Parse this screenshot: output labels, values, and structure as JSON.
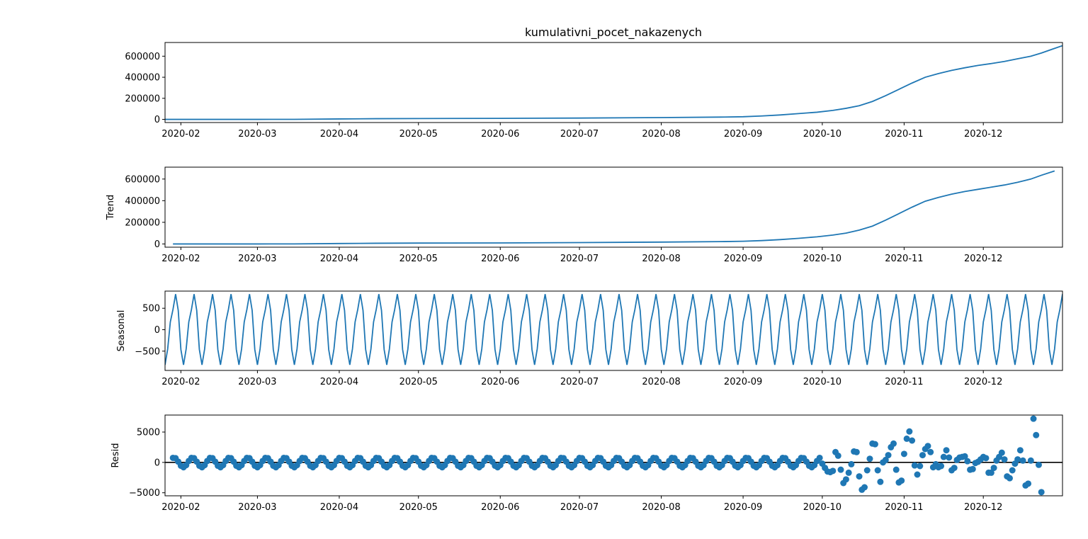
{
  "chart_data": {
    "type": "line",
    "title": "kumulativni_pocet_nakazenych",
    "series_color": "#1f77b4",
    "zero_line_color": "#000000",
    "x_tick_labels": [
      "2020-02",
      "2020-03",
      "2020-04",
      "2020-05",
      "2020-06",
      "2020-07",
      "2020-08",
      "2020-09",
      "2020-10",
      "2020-11",
      "2020-12"
    ],
    "x_tick_dates": [
      "2020-02-01",
      "2020-03-01",
      "2020-04-01",
      "2020-05-01",
      "2020-06-01",
      "2020-07-01",
      "2020-08-01",
      "2020-09-01",
      "2020-10-01",
      "2020-11-01",
      "2020-12-01"
    ],
    "x_range": [
      "2020-01-26",
      "2020-12-31"
    ],
    "panels": [
      {
        "name": "observed",
        "ylabel": "",
        "kind": "line",
        "ylim": [
          -30000,
          730000
        ],
        "y_ticks": [
          0,
          200000,
          400000,
          600000
        ],
        "y_tick_labels": [
          "0",
          "200000",
          "400000",
          "600000"
        ],
        "series_start": "2020-01-26",
        "series_end": "2020-12-31",
        "points": [
          [
            "2020-01-26",
            0
          ],
          [
            "2020-03-01",
            0
          ],
          [
            "2020-03-15",
            500
          ],
          [
            "2020-04-01",
            4000
          ],
          [
            "2020-04-15",
            6500
          ],
          [
            "2020-05-01",
            8000
          ],
          [
            "2020-06-01",
            9500
          ],
          [
            "2020-07-01",
            12500
          ],
          [
            "2020-08-01",
            17000
          ],
          [
            "2020-08-25",
            22000
          ],
          [
            "2020-09-01",
            25000
          ],
          [
            "2020-09-08",
            32000
          ],
          [
            "2020-09-15",
            42000
          ],
          [
            "2020-09-22",
            55000
          ],
          [
            "2020-09-29",
            68000
          ],
          [
            "2020-10-05",
            85000
          ],
          [
            "2020-10-10",
            105000
          ],
          [
            "2020-10-15",
            130000
          ],
          [
            "2020-10-20",
            170000
          ],
          [
            "2020-10-25",
            225000
          ],
          [
            "2020-10-30",
            285000
          ],
          [
            "2020-11-04",
            345000
          ],
          [
            "2020-11-09",
            400000
          ],
          [
            "2020-11-14",
            435000
          ],
          [
            "2020-11-19",
            465000
          ],
          [
            "2020-11-24",
            490000
          ],
          [
            "2020-11-29",
            512000
          ],
          [
            "2020-12-04",
            530000
          ],
          [
            "2020-12-09",
            550000
          ],
          [
            "2020-12-14",
            575000
          ],
          [
            "2020-12-19",
            600000
          ],
          [
            "2020-12-23",
            630000
          ],
          [
            "2020-12-27",
            665000
          ],
          [
            "2020-12-31",
            700000
          ]
        ]
      },
      {
        "name": "trend",
        "ylabel": "Trend",
        "kind": "line",
        "ylim": [
          -30000,
          710000
        ],
        "y_ticks": [
          0,
          200000,
          400000,
          600000
        ],
        "y_tick_labels": [
          "0",
          "200000",
          "400000",
          "600000"
        ],
        "points": [
          [
            "2020-01-29",
            0
          ],
          [
            "2020-03-01",
            0
          ],
          [
            "2020-03-15",
            500
          ],
          [
            "2020-04-01",
            4000
          ],
          [
            "2020-04-15",
            6500
          ],
          [
            "2020-05-01",
            8000
          ],
          [
            "2020-06-01",
            9500
          ],
          [
            "2020-07-01",
            12500
          ],
          [
            "2020-08-01",
            17000
          ],
          [
            "2020-08-25",
            22000
          ],
          [
            "2020-09-01",
            25000
          ],
          [
            "2020-09-08",
            31000
          ],
          [
            "2020-09-15",
            40000
          ],
          [
            "2020-09-22",
            52000
          ],
          [
            "2020-09-29",
            66000
          ],
          [
            "2020-10-05",
            82000
          ],
          [
            "2020-10-10",
            100000
          ],
          [
            "2020-10-15",
            128000
          ],
          [
            "2020-10-20",
            165000
          ],
          [
            "2020-10-25",
            220000
          ],
          [
            "2020-10-30",
            280000
          ],
          [
            "2020-11-04",
            340000
          ],
          [
            "2020-11-09",
            395000
          ],
          [
            "2020-11-14",
            430000
          ],
          [
            "2020-11-19",
            460000
          ],
          [
            "2020-11-24",
            485000
          ],
          [
            "2020-11-29",
            505000
          ],
          [
            "2020-12-04",
            525000
          ],
          [
            "2020-12-09",
            545000
          ],
          [
            "2020-12-14",
            570000
          ],
          [
            "2020-12-19",
            600000
          ],
          [
            "2020-12-23",
            635000
          ],
          [
            "2020-12-28",
            675000
          ]
        ]
      },
      {
        "name": "seasonal",
        "ylabel": "Seasonal",
        "kind": "periodic",
        "ylim": [
          -950,
          900
        ],
        "y_ticks": [
          -500,
          0,
          500
        ],
        "y_tick_labels": [
          "−500",
          "0",
          "500"
        ],
        "period_days": 7,
        "series_start": "2020-01-26",
        "series_end": "2020-12-31",
        "pattern": [
          -820,
          -450,
          180,
          470,
          830,
          450,
          -460
        ]
      },
      {
        "name": "resid",
        "ylabel": "Resid",
        "kind": "scatter",
        "ylim": [
          -5500,
          7800
        ],
        "y_ticks": [
          -5000,
          0,
          5000
        ],
        "y_tick_labels": [
          "−5000",
          "0",
          "5000"
        ],
        "zero_line": true,
        "series_start": "2020-01-29",
        "series_end": "2020-12-28",
        "regular_amplitude": 800,
        "regular_until": "2020-09-30",
        "points_late": [
          [
            "2020-10-01",
            -200
          ],
          [
            "2020-10-02",
            -900
          ],
          [
            "2020-10-03",
            -1500
          ],
          [
            "2020-10-04",
            -1600
          ],
          [
            "2020-10-05",
            -1400
          ],
          [
            "2020-10-06",
            1700
          ],
          [
            "2020-10-07",
            1100
          ],
          [
            "2020-10-08",
            -1200
          ],
          [
            "2020-10-09",
            -3400
          ],
          [
            "2020-10-10",
            -2800
          ],
          [
            "2020-10-11",
            -1700
          ],
          [
            "2020-10-12",
            -300
          ],
          [
            "2020-10-13",
            1800
          ],
          [
            "2020-10-14",
            1700
          ],
          [
            "2020-10-15",
            -2300
          ],
          [
            "2020-10-16",
            -4500
          ],
          [
            "2020-10-17",
            -4100
          ],
          [
            "2020-10-18",
            -1300
          ],
          [
            "2020-10-19",
            600
          ],
          [
            "2020-10-20",
            3100
          ],
          [
            "2020-10-21",
            3000
          ],
          [
            "2020-10-22",
            -1300
          ],
          [
            "2020-10-23",
            -3200
          ],
          [
            "2020-10-24",
            0
          ],
          [
            "2020-10-25",
            400
          ],
          [
            "2020-10-26",
            1200
          ],
          [
            "2020-10-27",
            2500
          ],
          [
            "2020-10-28",
            3100
          ],
          [
            "2020-10-29",
            -1200
          ],
          [
            "2020-10-30",
            -3300
          ],
          [
            "2020-10-31",
            -3000
          ],
          [
            "2020-11-01",
            1400
          ],
          [
            "2020-11-02",
            3900
          ],
          [
            "2020-11-03",
            5100
          ],
          [
            "2020-11-04",
            3600
          ],
          [
            "2020-11-05",
            -500
          ],
          [
            "2020-11-06",
            -2000
          ],
          [
            "2020-11-07",
            -600
          ],
          [
            "2020-11-08",
            1200
          ],
          [
            "2020-11-09",
            2200
          ],
          [
            "2020-11-10",
            2700
          ],
          [
            "2020-11-11",
            1700
          ],
          [
            "2020-11-12",
            -800
          ],
          [
            "2020-11-13",
            -300
          ],
          [
            "2020-11-14",
            -800
          ],
          [
            "2020-11-15",
            -600
          ],
          [
            "2020-11-16",
            900
          ],
          [
            "2020-11-17",
            2000
          ],
          [
            "2020-11-18",
            800
          ],
          [
            "2020-11-19",
            -1300
          ],
          [
            "2020-11-20",
            -900
          ],
          [
            "2020-11-21",
            400
          ],
          [
            "2020-11-22",
            800
          ],
          [
            "2020-11-23",
            900
          ],
          [
            "2020-11-24",
            1000
          ],
          [
            "2020-11-25",
            200
          ],
          [
            "2020-11-26",
            -1200
          ],
          [
            "2020-11-27",
            -1100
          ],
          [
            "2020-11-28",
            -100
          ],
          [
            "2020-11-29",
            100
          ],
          [
            "2020-11-30",
            500
          ],
          [
            "2020-12-01",
            900
          ],
          [
            "2020-12-02",
            700
          ],
          [
            "2020-12-03",
            -1700
          ],
          [
            "2020-12-04",
            -1700
          ],
          [
            "2020-12-05",
            -900
          ],
          [
            "2020-12-06",
            300
          ],
          [
            "2020-12-07",
            900
          ],
          [
            "2020-12-08",
            1600
          ],
          [
            "2020-12-09",
            500
          ],
          [
            "2020-12-10",
            -2300
          ],
          [
            "2020-12-11",
            -2600
          ],
          [
            "2020-12-12",
            -1300
          ],
          [
            "2020-12-13",
            -200
          ],
          [
            "2020-12-14",
            500
          ],
          [
            "2020-12-15",
            2000
          ],
          [
            "2020-12-16",
            300
          ],
          [
            "2020-12-17",
            -3800
          ],
          [
            "2020-12-18",
            -3500
          ],
          [
            "2020-12-19",
            300
          ],
          [
            "2020-12-20",
            7200
          ],
          [
            "2020-12-21",
            4500
          ],
          [
            "2020-12-22",
            -400
          ],
          [
            "2020-12-23",
            -4900
          ]
        ]
      }
    ]
  }
}
